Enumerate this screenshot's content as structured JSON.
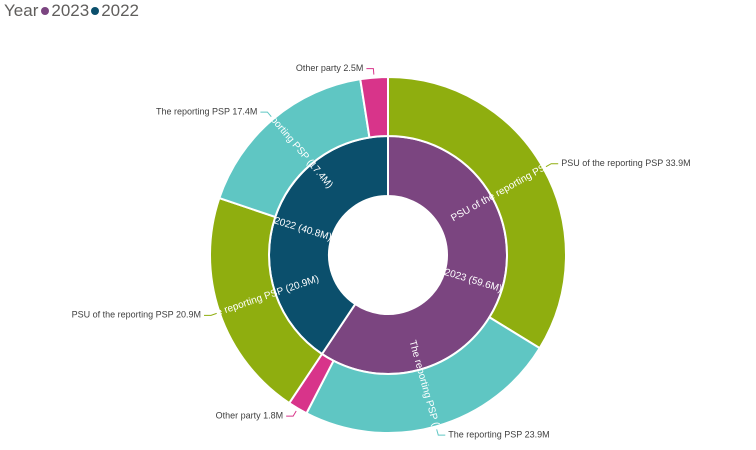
{
  "legend": {
    "title": "Year",
    "items": [
      {
        "label": "2023",
        "color": "#7b4580"
      },
      {
        "label": "2022",
        "color": "#0b4f6c"
      }
    ]
  },
  "chart_data": {
    "type": "sunburst",
    "legend_position": "top-left",
    "inner": [
      {
        "name": "2023",
        "value": 59.6,
        "label": "2023 (59.6M)",
        "color": "#7b4580"
      },
      {
        "name": "2022",
        "value": 40.8,
        "label": "2022 (40.8M)",
        "color": "#0b4f6c"
      }
    ],
    "outer": [
      {
        "parent": "2023",
        "name": "PSU of the reporting PSP",
        "value": 33.9,
        "inner_label": "PSU of the reporting PSP (33.9M)",
        "outside_label": "PSU of the reporting PSP 33.9M",
        "color": "#8fae0f"
      },
      {
        "parent": "2023",
        "name": "The reporting PSP",
        "value": 23.9,
        "inner_label": "The reporting PSP (23.9M)",
        "outside_label": "The reporting PSP 23.9M",
        "color": "#5fc6c3"
      },
      {
        "parent": "2023",
        "name": "Other party",
        "value": 1.8,
        "inner_label": "",
        "outside_label": "Other party 1.8M",
        "color": "#d8348a"
      },
      {
        "parent": "2022",
        "name": "PSU of the reporting PSP",
        "value": 20.9,
        "inner_label": "PSU of the reporting PSP (20.9M)",
        "outside_label": "PSU of the reporting PSP 20.9M",
        "color": "#8fae0f"
      },
      {
        "parent": "2022",
        "name": "The reporting PSP",
        "value": 17.4,
        "inner_label": "The reporting PSP (17.4M)",
        "outside_label": "The reporting PSP 17.4M",
        "color": "#5fc6c3"
      },
      {
        "parent": "2022",
        "name": "Other party",
        "value": 2.5,
        "inner_label": "",
        "outside_label": "Other party 2.5M",
        "color": "#d8348a"
      }
    ]
  }
}
